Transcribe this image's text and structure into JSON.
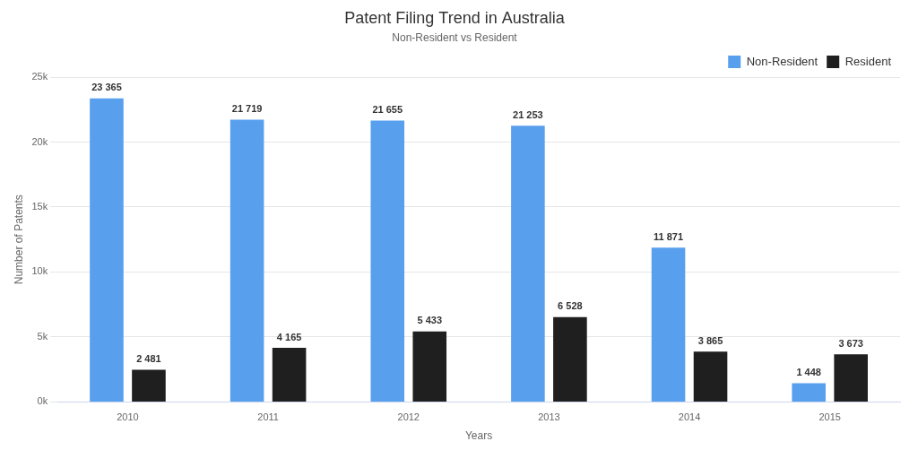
{
  "chart_data": {
    "type": "bar",
    "title": "Patent Filing Trend in Australia",
    "subtitle": "Non-Resident vs Resident",
    "x_label": "Years",
    "y_label": "Number of Patents",
    "categories": [
      "2010",
      "2011",
      "2012",
      "2013",
      "2014",
      "2015"
    ],
    "series": [
      {
        "name": "Non-Resident",
        "color": "#58a0ee",
        "values": [
          23365,
          21719,
          21655,
          21253,
          11871,
          1448
        ],
        "value_labels": [
          "23 365",
          "21 719",
          "21 655",
          "21 253",
          "11 871",
          "1 448"
        ]
      },
      {
        "name": "Resident",
        "color": "#1f1f1f",
        "values": [
          2481,
          4165,
          5433,
          6528,
          3865,
          3673
        ],
        "value_labels": [
          "2 481",
          "4 165",
          "5 433",
          "6 528",
          "3 865",
          "3 673"
        ]
      }
    ],
    "ylim": [
      0,
      25000
    ],
    "yticks": [
      {
        "value": 0,
        "label": "0k"
      },
      {
        "value": 5000,
        "label": "5k"
      },
      {
        "value": 10000,
        "label": "10k"
      },
      {
        "value": 15000,
        "label": "15k"
      },
      {
        "value": 20000,
        "label": "20k"
      },
      {
        "value": 25000,
        "label": "25k"
      }
    ],
    "grid": true,
    "legend": "top-right",
    "data_labels": true
  }
}
